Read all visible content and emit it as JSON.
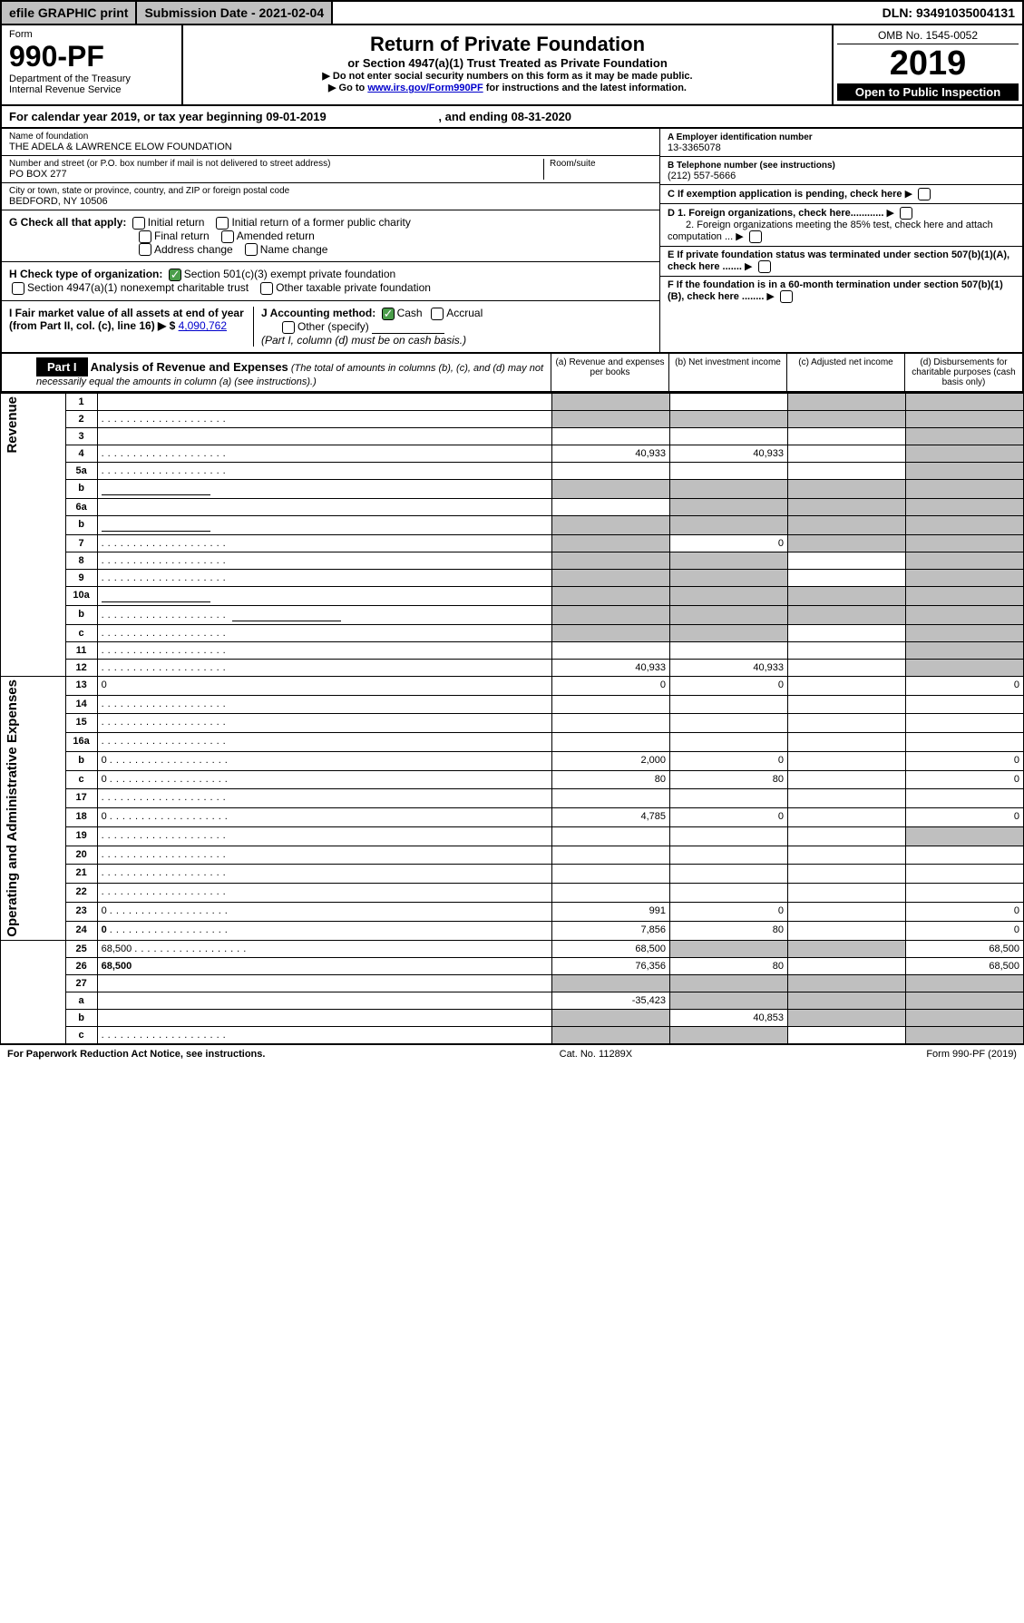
{
  "topbar": {
    "efile": "efile GRAPHIC print",
    "subdate_label": "Submission Date - ",
    "subdate": "2021-02-04",
    "dln_label": "DLN: ",
    "dln": "93491035004131"
  },
  "header": {
    "form_label": "Form",
    "form_num": "990-PF",
    "dept1": "Department of the Treasury",
    "dept2": "Internal Revenue Service",
    "title": "Return of Private Foundation",
    "subtitle": "or Section 4947(a)(1) Trust Treated as Private Foundation",
    "instr1": "▶ Do not enter social security numbers on this form as it may be made public.",
    "instr2_pre": "▶ Go to ",
    "instr2_link": "www.irs.gov/Form990PF",
    "instr2_post": " for instructions and the latest information.",
    "omb": "OMB No. 1545-0052",
    "year": "2019",
    "open": "Open to Public Inspection"
  },
  "calyear": {
    "pre": "For calendar year 2019, or tax year beginning ",
    "begin": "09-01-2019",
    "mid": " , and ending ",
    "end": "08-31-2020"
  },
  "info": {
    "name_label": "Name of foundation",
    "name": "THE ADELA & LAWRENCE ELOW FOUNDATION",
    "addr_label": "Number and street (or P.O. box number if mail is not delivered to street address)",
    "addr": "PO BOX 277",
    "room_label": "Room/suite",
    "city_label": "City or town, state or province, country, and ZIP or foreign postal code",
    "city": "BEDFORD, NY  10506",
    "ein_label": "A Employer identification number",
    "ein": "13-3365078",
    "phone_label": "B Telephone number (see instructions)",
    "phone": "(212) 557-5666",
    "c_label": "C If exemption application is pending, check here",
    "d1": "D 1. Foreign organizations, check here............",
    "d2": "2. Foreign organizations meeting the 85% test, check here and attach computation ...",
    "e_label": "E  If private foundation status was terminated under section 507(b)(1)(A), check here .......",
    "f_label": "F  If the foundation is in a 60-month termination under section 507(b)(1)(B), check here ........"
  },
  "checks": {
    "g_label": "G Check all that apply:",
    "g1": "Initial return",
    "g2": "Initial return of a former public charity",
    "g3": "Final return",
    "g4": "Amended return",
    "g5": "Address change",
    "g6": "Name change",
    "h_label": "H Check type of organization:",
    "h1": "Section 501(c)(3) exempt private foundation",
    "h2": "Section 4947(a)(1) nonexempt charitable trust",
    "h3": "Other taxable private foundation",
    "i_label": "I Fair market value of all assets at end of year (from Part II, col. (c), line 16) ▶ $ ",
    "i_val": "4,090,762",
    "j_label": "J Accounting method:",
    "j1": "Cash",
    "j2": "Accrual",
    "j3": "Other (specify)",
    "j_note": "(Part I, column (d) must be on cash basis.)"
  },
  "part1": {
    "label": "Part I",
    "title": "Analysis of Revenue and Expenses",
    "note": " (The total of amounts in columns (b), (c), and (d) may not necessarily equal the amounts in column (a) (see instructions).)",
    "col_a": "(a) Revenue and expenses per books",
    "col_b": "(b) Net investment income",
    "col_c": "(c) Adjusted net income",
    "col_d": "(d) Disbursements for charitable purposes (cash basis only)"
  },
  "sections": {
    "revenue": "Revenue",
    "expenses": "Operating and Administrative Expenses"
  },
  "rows": [
    {
      "n": "1",
      "d": "",
      "a": "",
      "b": "",
      "c": "",
      "sha": true,
      "shc": true,
      "shd": true
    },
    {
      "n": "2",
      "d": "",
      "a": "",
      "b": "",
      "c": "",
      "allshade": true,
      "dots": true
    },
    {
      "n": "3",
      "d": "",
      "a": "",
      "b": "",
      "c": "",
      "shd": true
    },
    {
      "n": "4",
      "d": "",
      "a": "40,933",
      "b": "40,933",
      "c": "",
      "shd": true,
      "dots": true
    },
    {
      "n": "5a",
      "d": "",
      "a": "",
      "b": "",
      "c": "",
      "shd": true,
      "dots": true
    },
    {
      "n": "b",
      "d": "",
      "a": "",
      "b": "",
      "c": "",
      "allshade": true,
      "subline": true
    },
    {
      "n": "6a",
      "d": "",
      "a": "",
      "b": "",
      "c": "",
      "shb": true,
      "shc": true,
      "shd": true
    },
    {
      "n": "b",
      "d": "",
      "a": "",
      "b": "",
      "c": "",
      "allshade": true,
      "subline": true
    },
    {
      "n": "7",
      "d": "",
      "a": "",
      "b": "0",
      "c": "",
      "sha": true,
      "shc": true,
      "shd": true,
      "dots": true
    },
    {
      "n": "8",
      "d": "",
      "a": "",
      "b": "",
      "c": "",
      "sha": true,
      "shb": true,
      "shd": true,
      "dots": true
    },
    {
      "n": "9",
      "d": "",
      "a": "",
      "b": "",
      "c": "",
      "sha": true,
      "shb": true,
      "shd": true,
      "dots": true
    },
    {
      "n": "10a",
      "d": "",
      "a": "",
      "b": "",
      "c": "",
      "allshade": true,
      "subline": true
    },
    {
      "n": "b",
      "d": "",
      "a": "",
      "b": "",
      "c": "",
      "allshade": true,
      "subline": true,
      "dots": true
    },
    {
      "n": "c",
      "d": "",
      "a": "",
      "b": "",
      "c": "",
      "sha": true,
      "shb": true,
      "shd": true,
      "dots": true
    },
    {
      "n": "11",
      "d": "",
      "a": "",
      "b": "",
      "c": "",
      "shd": true,
      "dots": true
    },
    {
      "n": "12",
      "d": "",
      "a": "40,933",
      "b": "40,933",
      "c": "",
      "bold": true,
      "shd": true,
      "dots": true
    },
    {
      "n": "13",
      "d": "0",
      "a": "0",
      "b": "0",
      "c": "",
      "sec": "exp"
    },
    {
      "n": "14",
      "d": "",
      "a": "",
      "b": "",
      "c": "",
      "dots": true
    },
    {
      "n": "15",
      "d": "",
      "a": "",
      "b": "",
      "c": "",
      "dots": true
    },
    {
      "n": "16a",
      "d": "",
      "a": "",
      "b": "",
      "c": "",
      "dots": true
    },
    {
      "n": "b",
      "d": "0",
      "a": "2,000",
      "b": "0",
      "c": "",
      "dots": true
    },
    {
      "n": "c",
      "d": "0",
      "a": "80",
      "b": "80",
      "c": "",
      "dots": true
    },
    {
      "n": "17",
      "d": "",
      "a": "",
      "b": "",
      "c": "",
      "dots": true
    },
    {
      "n": "18",
      "d": "0",
      "a": "4,785",
      "b": "0",
      "c": "",
      "dots": true
    },
    {
      "n": "19",
      "d": "",
      "a": "",
      "b": "",
      "c": "",
      "shd": true,
      "dots": true
    },
    {
      "n": "20",
      "d": "",
      "a": "",
      "b": "",
      "c": "",
      "dots": true
    },
    {
      "n": "21",
      "d": "",
      "a": "",
      "b": "",
      "c": "",
      "dots": true
    },
    {
      "n": "22",
      "d": "",
      "a": "",
      "b": "",
      "c": "",
      "dots": true
    },
    {
      "n": "23",
      "d": "0",
      "a": "991",
      "b": "0",
      "c": "",
      "dots": true
    },
    {
      "n": "24",
      "d": "0",
      "a": "7,856",
      "b": "80",
      "c": "",
      "bold": true,
      "dots": true
    },
    {
      "n": "25",
      "d": "68,500",
      "a": "68,500",
      "b": "",
      "c": "",
      "shb": true,
      "shc": true,
      "dots": true
    },
    {
      "n": "26",
      "d": "68,500",
      "a": "76,356",
      "b": "80",
      "c": "",
      "bold": true
    },
    {
      "n": "27",
      "d": "",
      "a": "",
      "b": "",
      "c": "",
      "sha": true,
      "shb": true,
      "shc": true,
      "shd": true,
      "noside": true
    },
    {
      "n": "a",
      "d": "",
      "a": "-35,423",
      "b": "",
      "c": "",
      "bold": true,
      "shb": true,
      "shc": true,
      "shd": true
    },
    {
      "n": "b",
      "d": "",
      "a": "",
      "b": "40,853",
      "c": "",
      "bold": true,
      "sha": true,
      "shc": true,
      "shd": true
    },
    {
      "n": "c",
      "d": "",
      "a": "",
      "b": "",
      "c": "",
      "bold": true,
      "sha": true,
      "shb": true,
      "shd": true,
      "dots": true
    }
  ],
  "footer": {
    "left": "For Paperwork Reduction Act Notice, see instructions.",
    "mid": "Cat. No. 11289X",
    "right": "Form 990-PF (2019)"
  }
}
